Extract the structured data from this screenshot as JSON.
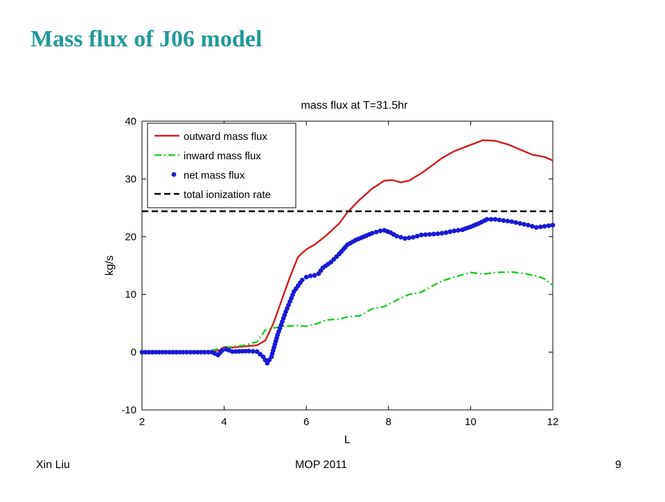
{
  "slide": {
    "title": "Mass flux of J06 model",
    "footer_left": "Xin Liu",
    "footer_center": "MOP 2011",
    "page_number": "9"
  },
  "chart_data": {
    "type": "line",
    "title": "mass flux at T=31.5hr",
    "xlabel": "L",
    "ylabel": "kg/s",
    "xlim": [
      2,
      12
    ],
    "ylim": [
      -10,
      40
    ],
    "xticks": [
      2,
      4,
      6,
      8,
      10,
      12
    ],
    "yticks": [
      -10,
      0,
      10,
      20,
      30,
      40
    ],
    "grid": false,
    "legend_position": "top-left",
    "series": [
      {
        "name": "outward mass flux",
        "style": "solid",
        "color": "#d42020",
        "x": [
          2,
          3,
          3.7,
          3.9,
          4.0,
          4.2,
          4.5,
          4.8,
          5.0,
          5.2,
          5.4,
          5.6,
          5.8,
          6.0,
          6.2,
          6.5,
          6.8,
          7.0,
          7.3,
          7.6,
          7.9,
          8.1,
          8.3,
          8.5,
          8.8,
          9.0,
          9.3,
          9.6,
          10.0,
          10.3,
          10.6,
          10.9,
          11.2,
          11.5,
          11.8,
          12.0
        ],
        "y": [
          0,
          0,
          0.1,
          0.4,
          0.9,
          0.8,
          1.0,
          1.2,
          2.0,
          5.0,
          9.0,
          13.0,
          16.5,
          17.8,
          18.6,
          20.3,
          22.3,
          24.2,
          26.4,
          28.3,
          29.7,
          29.8,
          29.4,
          29.7,
          31.0,
          32.0,
          33.6,
          34.8,
          35.9,
          36.7,
          36.6,
          36.0,
          35.1,
          34.2,
          33.8,
          33.2
        ]
      },
      {
        "name": "inward mass flux",
        "style": "dashdot",
        "color": "#22cc22",
        "x": [
          2,
          3,
          3.7,
          4.0,
          4.5,
          4.8,
          5.0,
          5.2,
          5.5,
          5.8,
          6.0,
          6.2,
          6.5,
          6.8,
          7.0,
          7.3,
          7.6,
          7.9,
          8.2,
          8.5,
          8.8,
          9.0,
          9.3,
          9.6,
          10.0,
          10.3,
          10.6,
          11.0,
          11.3,
          11.6,
          11.8,
          12.0
        ],
        "y": [
          0,
          0,
          0.3,
          0.8,
          1.2,
          1.8,
          3.8,
          4.2,
          4.5,
          4.6,
          4.5,
          4.8,
          5.6,
          5.7,
          6.1,
          6.3,
          7.5,
          7.9,
          9.0,
          10.0,
          10.4,
          11.2,
          12.3,
          13.0,
          13.8,
          13.5,
          13.8,
          13.9,
          13.6,
          13.2,
          12.7,
          11.6
        ]
      },
      {
        "name": "net mass flux",
        "style": "dots",
        "color": "#1a1ad6",
        "x": [
          2,
          3,
          3.7,
          3.85,
          3.95,
          4.05,
          4.2,
          4.6,
          4.8,
          4.95,
          5.05,
          5.15,
          5.3,
          5.5,
          5.7,
          5.9,
          6.0,
          6.1,
          6.2,
          6.3,
          6.4,
          6.6,
          6.8,
          7.0,
          7.2,
          7.4,
          7.6,
          7.8,
          7.9,
          8.05,
          8.2,
          8.4,
          8.6,
          8.8,
          9.0,
          9.2,
          9.4,
          9.6,
          9.8,
          10.0,
          10.2,
          10.4,
          10.6,
          10.8,
          11.0,
          11.2,
          11.4,
          11.6,
          11.8,
          12.0
        ],
        "y": [
          0,
          0,
          0,
          -0.5,
          0.3,
          0.5,
          0.1,
          0.2,
          0.1,
          -0.8,
          -1.9,
          -0.8,
          3.0,
          7.0,
          10.5,
          12.5,
          13.0,
          13.2,
          13.3,
          13.6,
          14.6,
          15.6,
          17.0,
          18.6,
          19.4,
          20.0,
          20.6,
          21.0,
          21.1,
          20.7,
          20.1,
          19.7,
          19.9,
          20.3,
          20.4,
          20.5,
          20.7,
          21.0,
          21.2,
          21.7,
          22.3,
          23.0,
          23.0,
          22.8,
          22.6,
          22.3,
          22.0,
          21.6,
          21.8,
          22.0
        ]
      },
      {
        "name": "total ionization rate",
        "style": "dashed",
        "color": "#000000",
        "x": [
          2,
          12
        ],
        "y": [
          24.4,
          24.4
        ]
      }
    ]
  }
}
